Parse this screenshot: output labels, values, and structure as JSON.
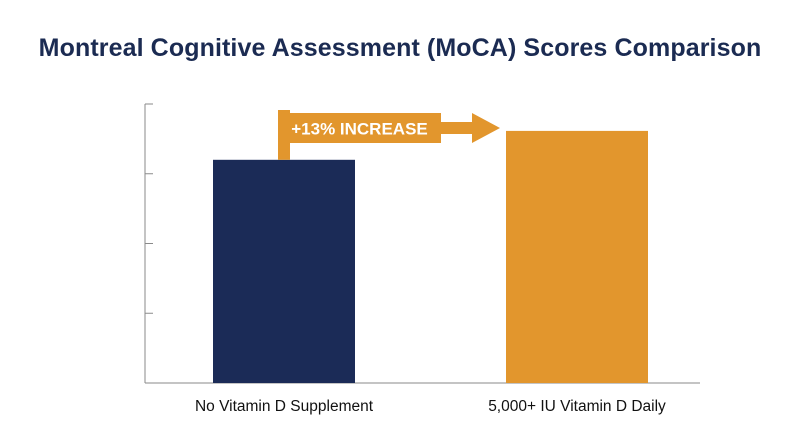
{
  "chart_data": {
    "type": "bar",
    "title": "Montreal Cognitive Assessment (MoCA) Scores Comparison",
    "categories": [
      "No Vitamin D Supplement",
      "5,000+ IU Vitamin D Daily"
    ],
    "values": [
      22.4,
      25.3
    ],
    "ylim": [
      0,
      28
    ],
    "yticks": [
      0,
      7,
      14,
      21,
      28
    ],
    "xlabel": "",
    "ylabel": "",
    "grid": false,
    "legend": "none",
    "colors": [
      "#1b2b57",
      "#e2962d"
    ],
    "annotation": {
      "text": "+13% INCREASE",
      "color": "#e2962d"
    }
  }
}
